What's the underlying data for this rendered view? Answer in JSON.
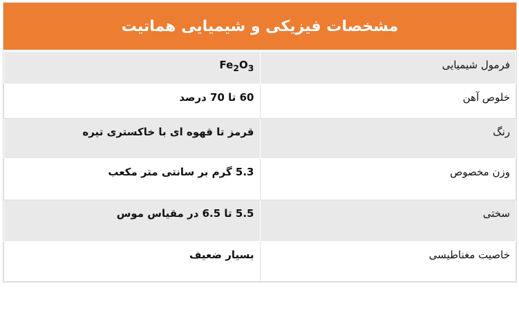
{
  "title": "مشخصات فیزیکی و شیمیایی هماتیت",
  "colors": {
    "header": "#ed7d31",
    "row_gray": "#e9e9e9"
  },
  "rows": [
    {
      "label": "فرمول شیمیایی",
      "value": "Fe2O3",
      "formula": {
        "a": "Fe",
        "b": "2",
        "c": "O",
        "d": "3"
      }
    },
    {
      "label": "خلوص آهن",
      "value": "60 تا 70 درصد"
    },
    {
      "label": "رنگ",
      "value": "قرمز تا قهوه ای با خاکستری تیره"
    },
    {
      "label": "وزن مخصوص",
      "value": "5.3 گرم بر سانتی متر مکعب"
    },
    {
      "label": "سختی",
      "value": "5.5 تا 6.5 در مقیاس موس"
    },
    {
      "label": "خاصیت مغناطیسی",
      "value": "بسیار ضعیف"
    }
  ]
}
